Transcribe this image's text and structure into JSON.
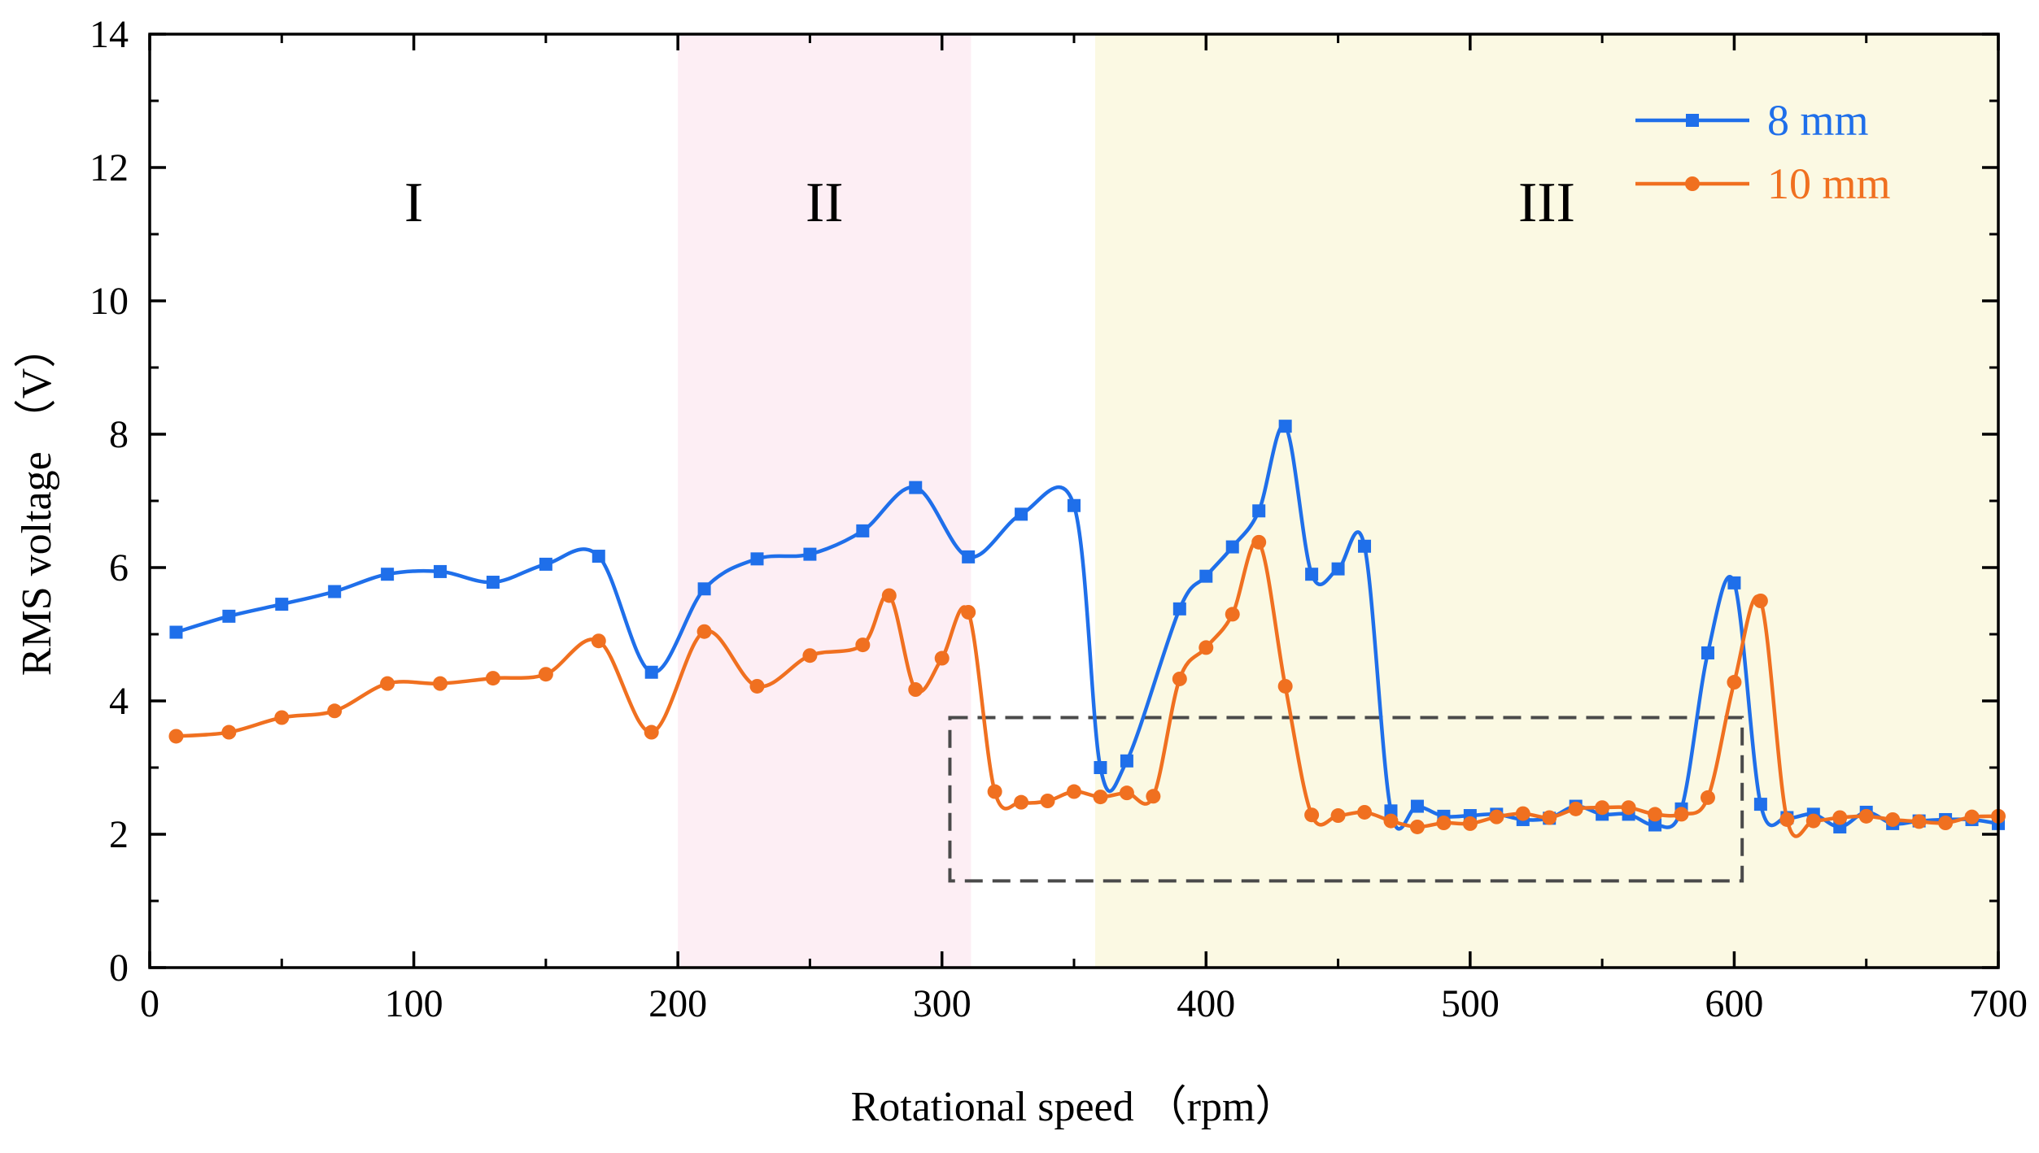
{
  "chart_data": {
    "type": "line",
    "title": "",
    "xlabel": "Rotational speed （rpm）",
    "ylabel": "RMS voltage （V）",
    "xlim": [
      0,
      700
    ],
    "ylim": [
      0,
      14
    ],
    "xticks": [
      0,
      100,
      200,
      300,
      400,
      500,
      600,
      700
    ],
    "yticks": [
      0,
      2,
      4,
      6,
      8,
      10,
      12,
      14
    ],
    "grid": false,
    "legend_position": "top-right",
    "regions": [
      {
        "label": "I",
        "x_start": 0,
        "x_end": 200,
        "color": "#ffffff"
      },
      {
        "label": "II",
        "x_start": 200,
        "x_end": 311,
        "color": "#fdeef4"
      },
      {
        "label": "III",
        "x_start": 358,
        "x_end": 700,
        "color": "#fbf9e3"
      }
    ],
    "annotation_box": {
      "x_start": 303,
      "x_end": 603,
      "y_start": 1.3,
      "y_end": 3.75,
      "style": "dashed"
    },
    "series": [
      {
        "name": "8 mm",
        "color": "#1f6fea",
        "marker": "square",
        "x": [
          10,
          30,
          50,
          70,
          90,
          110,
          130,
          150,
          170,
          190,
          210,
          230,
          250,
          270,
          290,
          310,
          330,
          350,
          360,
          370,
          390,
          400,
          410,
          420,
          430,
          440,
          450,
          460,
          470,
          480,
          490,
          500,
          510,
          520,
          530,
          540,
          550,
          560,
          570,
          580,
          590,
          600,
          610,
          620,
          630,
          640,
          650,
          660,
          670,
          680,
          690,
          700
        ],
        "values": [
          5.03,
          5.27,
          5.45,
          5.64,
          5.9,
          5.94,
          5.78,
          6.05,
          6.17,
          4.43,
          5.68,
          6.13,
          6.2,
          6.55,
          7.2,
          6.16,
          6.8,
          6.93,
          3.0,
          3.1,
          5.38,
          5.87,
          6.31,
          6.85,
          8.12,
          5.9,
          5.98,
          6.32,
          2.35,
          2.42,
          2.27,
          2.28,
          2.3,
          2.22,
          2.24,
          2.42,
          2.3,
          2.3,
          2.14,
          2.38,
          4.72,
          5.77,
          2.45,
          2.25,
          2.3,
          2.11,
          2.33,
          2.16,
          2.2,
          2.22,
          2.22,
          2.16
        ]
      },
      {
        "name": "10 mm",
        "color": "#f07020",
        "marker": "circle",
        "x": [
          10,
          30,
          50,
          70,
          90,
          110,
          130,
          150,
          170,
          190,
          210,
          230,
          250,
          270,
          280,
          290,
          300,
          310,
          320,
          330,
          340,
          350,
          360,
          370,
          380,
          390,
          400,
          410,
          420,
          430,
          440,
          450,
          460,
          470,
          480,
          490,
          500,
          510,
          520,
          530,
          540,
          550,
          560,
          570,
          580,
          590,
          600,
          610,
          620,
          630,
          640,
          650,
          660,
          670,
          680,
          690,
          700
        ],
        "values": [
          3.47,
          3.53,
          3.75,
          3.85,
          4.26,
          4.26,
          4.34,
          4.4,
          4.9,
          3.53,
          5.04,
          4.22,
          4.68,
          4.84,
          5.58,
          4.17,
          4.64,
          5.33,
          2.64,
          2.48,
          2.5,
          2.64,
          2.56,
          2.62,
          2.57,
          4.33,
          4.8,
          5.3,
          6.38,
          4.22,
          2.29,
          2.28,
          2.33,
          2.2,
          2.11,
          2.17,
          2.16,
          2.26,
          2.31,
          2.25,
          2.38,
          2.4,
          2.4,
          2.3,
          2.3,
          2.55,
          4.28,
          5.5,
          2.22,
          2.2,
          2.25,
          2.27,
          2.22,
          2.19,
          2.17,
          2.26,
          2.27
        ]
      }
    ]
  }
}
